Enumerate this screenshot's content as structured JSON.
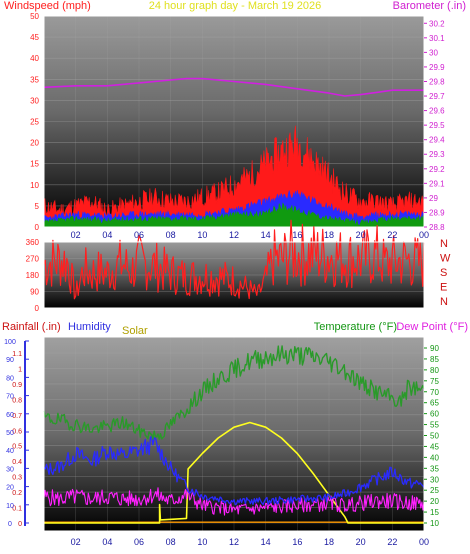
{
  "header": {
    "left_label": "Windspeed (mph)",
    "center_label": "24 hour graph day - March 19 2026",
    "right_label": "Barometer (.in)"
  },
  "colors": {
    "background_top": "#404040",
    "background_bottom": "#000000",
    "frame": "#ffffff",
    "wind_left_axis": "#ff2020",
    "baro_axis": "#d020d0",
    "dir_labels": "#cc1111",
    "rain_axis": "#cc1111",
    "humidity_axis": "#3030e0",
    "solar_label": "#b0a000",
    "temp_axis": "#149614",
    "dew_label": "#e020e0",
    "x_ticks": "#1a1aa0",
    "wind_gust": "#ff1a1a",
    "wind_avg": "#2a2aff",
    "wind_low": "#109a10",
    "barometer": "#d020e0",
    "direction": "#ff2020",
    "temperature": "#2a9a2a",
    "humidity": "#2a2aff",
    "dew_point": "#ff20ff",
    "solar": "#ffff20",
    "rainfall": "#ff9900"
  },
  "x_ticks": [
    "02",
    "04",
    "06",
    "08",
    "10",
    "12",
    "14",
    "16",
    "18",
    "20",
    "22",
    "00"
  ],
  "chart_data": [
    {
      "type": "line",
      "x_range_hours": [
        0,
        24
      ],
      "left_axis": {
        "label": "Windspeed (mph)",
        "ticks": [
          0,
          5,
          10,
          15,
          20,
          25,
          30,
          35,
          40,
          45,
          50
        ],
        "range": [
          0,
          50
        ]
      },
      "right_axis": {
        "label": "Barometer (.in)",
        "ticks": [
          "28.8",
          "28.9",
          "29",
          "29.1",
          "29.2",
          "29.3",
          "29.4",
          "29.5",
          "29.6",
          "29.7",
          "29.8",
          "29.9",
          "30",
          "30.1",
          "30.2"
        ],
        "range": [
          28.8,
          30.25
        ]
      },
      "series": [
        {
          "key": "gust",
          "axis": "left",
          "points": [
            [
              0,
              5
            ],
            [
              1,
              4
            ],
            [
              2,
              5
            ],
            [
              3,
              6
            ],
            [
              4,
              4
            ],
            [
              5,
              5
            ],
            [
              6,
              6
            ],
            [
              7,
              7
            ],
            [
              8,
              6
            ],
            [
              9,
              6
            ],
            [
              10,
              7
            ],
            [
              11,
              8
            ],
            [
              12,
              10
            ],
            [
              13,
              12
            ],
            [
              14,
              15
            ],
            [
              15,
              18
            ],
            [
              16,
              20
            ],
            [
              17,
              16
            ],
            [
              18,
              12
            ],
            [
              19,
              8
            ],
            [
              20,
              6
            ],
            [
              21,
              6
            ],
            [
              22,
              5
            ],
            [
              23,
              6
            ],
            [
              24,
              6
            ]
          ]
        },
        {
          "key": "avg",
          "axis": "left",
          "points": [
            [
              0,
              2
            ],
            [
              2,
              3
            ],
            [
              4,
              2.5
            ],
            [
              6,
              3
            ],
            [
              8,
              3
            ],
            [
              10,
              3
            ],
            [
              12,
              4
            ],
            [
              14,
              6
            ],
            [
              15,
              7
            ],
            [
              16,
              8
            ],
            [
              17,
              6
            ],
            [
              18,
              5
            ],
            [
              19,
              3
            ],
            [
              20,
              2.5
            ],
            [
              22,
              3
            ],
            [
              24,
              3
            ]
          ]
        },
        {
          "key": "low",
          "axis": "left",
          "points": [
            [
              0,
              1
            ],
            [
              2,
              2
            ],
            [
              4,
              1.5
            ],
            [
              6,
              2
            ],
            [
              8,
              2
            ],
            [
              10,
              2
            ],
            [
              12,
              3
            ],
            [
              14,
              3
            ],
            [
              15,
              5
            ],
            [
              16,
              4
            ],
            [
              17,
              3
            ],
            [
              18,
              2
            ],
            [
              19,
              1.5
            ],
            [
              20,
              1
            ],
            [
              22,
              2
            ],
            [
              24,
              2
            ]
          ]
        },
        {
          "key": "barometer",
          "axis": "right",
          "points": [
            [
              0,
              29.76
            ],
            [
              2,
              29.77
            ],
            [
              4,
              29.77
            ],
            [
              6,
              29.79
            ],
            [
              8,
              29.81
            ],
            [
              9,
              29.82
            ],
            [
              10,
              29.82
            ],
            [
              12,
              29.8
            ],
            [
              14,
              29.78
            ],
            [
              16,
              29.75
            ],
            [
              18,
              29.72
            ],
            [
              19,
              29.7
            ],
            [
              20,
              29.71
            ],
            [
              22,
              29.74
            ],
            [
              24,
              29.74
            ]
          ]
        }
      ]
    },
    {
      "type": "line",
      "x_range_hours": [
        0,
        24
      ],
      "left_axis": {
        "label": "",
        "ticks": [
          0,
          90,
          180,
          270,
          360
        ],
        "range": [
          0,
          360
        ]
      },
      "right_axis": {
        "label": "",
        "ticks": [
          "N",
          "W",
          "S",
          "E",
          "N"
        ]
      },
      "series": [
        {
          "key": "direction",
          "axis": "left",
          "points": [
            [
              0,
              240
            ],
            [
              1,
              260
            ],
            [
              1.5,
              250
            ],
            [
              2,
              70
            ],
            [
              2.5,
              210
            ],
            [
              3,
              190
            ],
            [
              3.5,
              200
            ],
            [
              4,
              190
            ],
            [
              4.5,
              230
            ],
            [
              5,
              240
            ],
            [
              5.5,
              200
            ],
            [
              6,
              250
            ],
            [
              7,
              230
            ],
            [
              8,
              190
            ],
            [
              9,
              170
            ],
            [
              10,
              175
            ],
            [
              11,
              170
            ],
            [
              12,
              150
            ],
            [
              13,
              100
            ],
            [
              13.5,
              70
            ],
            [
              14,
              150
            ],
            [
              14.5,
              270
            ],
            [
              15,
              260
            ],
            [
              15.5,
              300
            ],
            [
              16,
              290
            ],
            [
              17,
              295
            ],
            [
              18,
              285
            ],
            [
              19,
              270
            ],
            [
              20,
              265
            ],
            [
              21,
              290
            ],
            [
              21.5,
              240
            ],
            [
              22,
              250
            ],
            [
              23,
              260
            ],
            [
              24,
              240
            ]
          ]
        }
      ]
    },
    {
      "type": "line",
      "x_range_hours": [
        0,
        24
      ],
      "left_axis": {
        "label": "Rainfall (.in)",
        "ticks": [
          "0",
          "0.1",
          "0.2",
          "0.3",
          "0.4",
          "0.5",
          "0.6",
          "0.7",
          "0.8",
          "0.9",
          "1",
          "1.1"
        ],
        "range": [
          0,
          1.1
        ]
      },
      "humidity_axis": {
        "label": "Humidity",
        "ticks": [
          0,
          10,
          20,
          30,
          40,
          50,
          60,
          70,
          80,
          90,
          100
        ],
        "range": [
          0,
          100
        ]
      },
      "solar_label": "Solar",
      "right_axis": {
        "label": "Temperature (°F)",
        "ticks": [
          10,
          15,
          20,
          25,
          30,
          35,
          40,
          45,
          50,
          55,
          60,
          65,
          70,
          75,
          80,
          85,
          90
        ],
        "range": [
          10,
          93
        ]
      },
      "dew_point_label": "Dew Point (°F)",
      "series": [
        {
          "key": "temperature",
          "axis": "temp",
          "points": [
            [
              0,
              58
            ],
            [
              1,
              57
            ],
            [
              2,
              55
            ],
            [
              3,
              53
            ],
            [
              4,
              54
            ],
            [
              5,
              56
            ],
            [
              6,
              52
            ],
            [
              7,
              50
            ],
            [
              7.5,
              51
            ],
            [
              8,
              55
            ],
            [
              9,
              62
            ],
            [
              10,
              70
            ],
            [
              11,
              76
            ],
            [
              12,
              80
            ],
            [
              13,
              84
            ],
            [
              14,
              86
            ],
            [
              15,
              87
            ],
            [
              16,
              87
            ],
            [
              17,
              86
            ],
            [
              18,
              84
            ],
            [
              19,
              80
            ],
            [
              20,
              74
            ],
            [
              21,
              70
            ],
            [
              22,
              67
            ],
            [
              22.5,
              65
            ],
            [
              23,
              72
            ],
            [
              24,
              71
            ]
          ]
        },
        {
          "key": "humidity",
          "axis": "humidity",
          "points": [
            [
              0,
              29
            ],
            [
              1,
              31
            ],
            [
              2,
              38
            ],
            [
              3,
              34
            ],
            [
              4,
              40
            ],
            [
              5,
              37
            ],
            [
              6,
              40
            ],
            [
              7,
              44
            ],
            [
              8,
              30
            ],
            [
              9,
              20
            ],
            [
              10,
              15
            ],
            [
              12,
              12
            ],
            [
              14,
              12
            ],
            [
              16,
              13
            ],
            [
              18,
              14
            ],
            [
              19,
              16
            ],
            [
              20,
              20
            ],
            [
              21,
              24
            ],
            [
              22,
              28
            ],
            [
              23,
              22
            ],
            [
              24,
              21
            ]
          ]
        },
        {
          "key": "dew_point",
          "axis": "temp",
          "points": [
            [
              0,
              22
            ],
            [
              1,
              21
            ],
            [
              2,
              22
            ],
            [
              3,
              21
            ],
            [
              4,
              22
            ],
            [
              5,
              21
            ],
            [
              6,
              21
            ],
            [
              7,
              23
            ],
            [
              8,
              20
            ],
            [
              9,
              23
            ],
            [
              10,
              18
            ],
            [
              12,
              16
            ],
            [
              14,
              17
            ],
            [
              16,
              18
            ],
            [
              18,
              19
            ],
            [
              19,
              18
            ],
            [
              20,
              19
            ],
            [
              21,
              20
            ],
            [
              22,
              20
            ],
            [
              23,
              19
            ],
            [
              24,
              19
            ]
          ]
        },
        {
          "key": "solar",
          "axis": "rain",
          "points": [
            [
              0,
              0
            ],
            [
              7.3,
              0
            ],
            [
              7.3,
              0.12
            ],
            [
              7.35,
              0.02
            ],
            [
              9,
              0.03
            ],
            [
              9.1,
              0.35
            ],
            [
              10,
              0.45
            ],
            [
              11,
              0.55
            ],
            [
              12,
              0.62
            ],
            [
              13,
              0.65
            ],
            [
              14,
              0.62
            ],
            [
              15,
              0.55
            ],
            [
              16,
              0.45
            ],
            [
              17,
              0.32
            ],
            [
              18,
              0.18
            ],
            [
              19,
              0.04
            ],
            [
              19.2,
              0
            ],
            [
              24,
              0
            ]
          ]
        },
        {
          "key": "rainfall",
          "axis": "rain",
          "points": [
            [
              0,
              0.005
            ],
            [
              24,
              0.005
            ]
          ]
        }
      ]
    }
  ]
}
